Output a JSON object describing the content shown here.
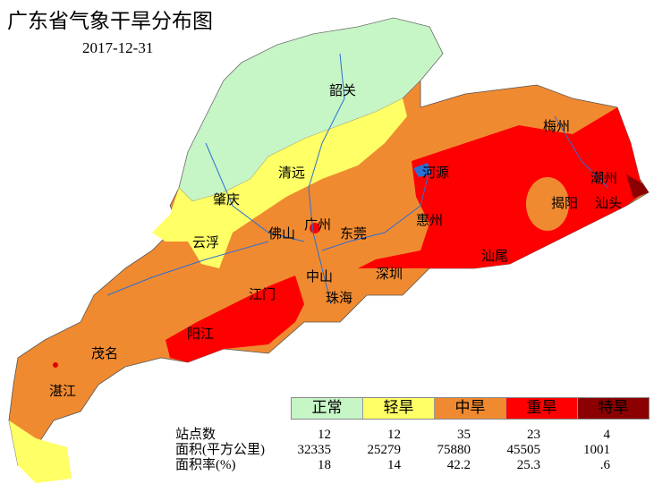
{
  "title": "广东省气象干旱分布图",
  "date": "2017-12-31",
  "cities": [
    "韶关",
    "梅州",
    "清远",
    "河源",
    "潮州",
    "汕头",
    "揭阳",
    "肇庆",
    "广州",
    "惠州",
    "佛山",
    "东莞",
    "云浮",
    "汕尾",
    "中山",
    "深圳",
    "江门",
    "珠海",
    "阳江",
    "茂名",
    "湛江"
  ],
  "legend": [
    {
      "label": "正常",
      "color": "#c6f5c6"
    },
    {
      "label": "轻旱",
      "color": "#ffff66"
    },
    {
      "label": "中旱",
      "color": "#f08a30"
    },
    {
      "label": "重旱",
      "color": "#ff0000"
    },
    {
      "label": "特旱",
      "color": "#8b0000"
    }
  ],
  "stats": {
    "row_labels": [
      "站点数",
      "面积(平方公里)",
      "面积率(%)"
    ],
    "station_count": [
      "12",
      "12",
      "35",
      "23",
      "4"
    ],
    "area_km2": [
      "32335",
      "25279",
      "75880",
      "45505",
      "1001"
    ],
    "area_rate": [
      "18",
      "14",
      "42.2",
      "25.3",
      ".6"
    ]
  }
}
